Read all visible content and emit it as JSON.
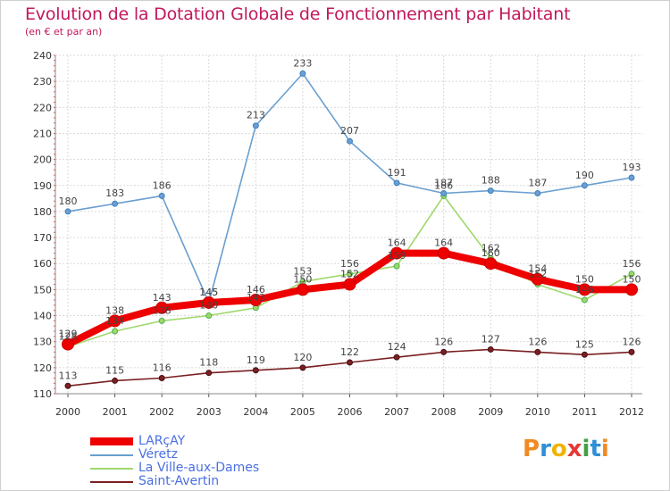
{
  "header": {
    "title": "Evolution de la Dotation Globale de Fonctionnement par Habitant",
    "subtitle": "(en € et par an)"
  },
  "brand": {
    "text": "Proxiti",
    "colors": [
      "#f08a24",
      "#2e8fd6",
      "#f0b400",
      "#e53935",
      "#43a047",
      "#2e8fd6",
      "#f08a24"
    ]
  },
  "chart_data": {
    "type": "line",
    "title": "Evolution de la Dotation Globale de Fonctionnement par Habitant",
    "subtitle": "(en € et par an)",
    "xlabel": "",
    "ylabel": "",
    "x": [
      "2000",
      "2001",
      "2002",
      "2003",
      "2004",
      "2005",
      "2006",
      "2007",
      "2008",
      "2009",
      "2010",
      "2011",
      "2012"
    ],
    "ylim": [
      110,
      240
    ],
    "yticks": [
      110,
      120,
      130,
      140,
      150,
      160,
      170,
      180,
      190,
      200,
      210,
      220,
      230,
      240
    ],
    "grid": true,
    "legend_position": "bottom-left",
    "series": [
      {
        "name": "Saint-Avertin",
        "color": "#7a1f22",
        "values": [
          113,
          115,
          116,
          118,
          119,
          120,
          122,
          124,
          126,
          127,
          126,
          125,
          126
        ]
      },
      {
        "name": "La Ville-aux-Dames",
        "color": "#9fd86b",
        "values": [
          128,
          134,
          138,
          140,
          143,
          153,
          156,
          159,
          186,
          162,
          152,
          146,
          156
        ]
      },
      {
        "name": "Véretz",
        "color": "#6a9fd0",
        "values": [
          180,
          183,
          186,
          145,
          213,
          233,
          207,
          191,
          187,
          188,
          187,
          190,
          193
        ]
      },
      {
        "name": "LARçAY",
        "color": "#ee0000",
        "values": [
          129,
          138,
          143,
          145,
          146,
          150,
          152,
          164,
          164,
          160,
          154,
          150,
          150
        ]
      }
    ],
    "data_labels": {
      "Saint-Avertin": [
        "113",
        "115",
        "116",
        "118",
        "119",
        "120",
        "122",
        "124",
        "126",
        "127",
        "126",
        "125",
        "126"
      ],
      "La Ville-aux-Dames": [
        "128",
        "134",
        "138",
        "140",
        "143",
        "153",
        "156",
        "159",
        "186",
        "162",
        "152",
        "146",
        "156"
      ],
      "Véretz": [
        "180",
        "183",
        "186",
        "145",
        "213",
        "233",
        "207",
        "191",
        "187",
        "188",
        "187",
        "190",
        "193"
      ],
      "LARçAY": [
        "129",
        "138",
        "143",
        "145",
        "146",
        "150",
        "152",
        "164",
        "164",
        "160",
        "154",
        "150",
        "150"
      ]
    }
  },
  "legend": {
    "items": [
      {
        "label": "LARçAY",
        "color": "#ee0000"
      },
      {
        "label": "Véretz",
        "color": "#6a9fd0"
      },
      {
        "label": "La Ville-aux-Dames",
        "color": "#9fd86b"
      },
      {
        "label": "Saint-Avertin",
        "color": "#7a1f22"
      }
    ]
  }
}
